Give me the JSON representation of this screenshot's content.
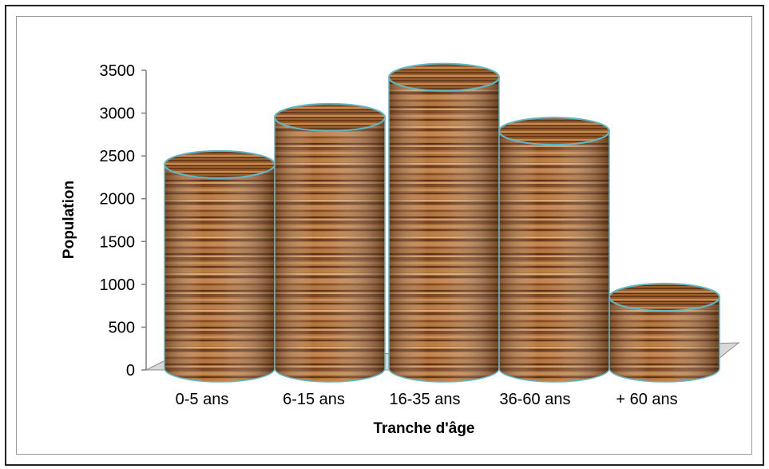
{
  "chart_data": {
    "type": "bar",
    "style": "3D cylinder, wood texture",
    "categories": [
      "0-5 ans",
      "6-15 ans",
      "16-35 ans",
      "36-60 ans",
      "+ 60 ans"
    ],
    "series": [
      {
        "values": [
          2400,
          2950,
          3420,
          2790,
          850
        ]
      }
    ],
    "xlabel": "Tranche d'âge",
    "ylabel": "Population",
    "ylim": [
      0,
      3500
    ],
    "yticks": [
      "0",
      "500",
      "1000",
      "1500",
      "2000",
      "2500",
      "3000",
      "3500"
    ],
    "grid": false,
    "legend": "none",
    "colors": {
      "wood_dark": "#6e3d1a",
      "wood_mid": "#a86a34",
      "wood_light": "#d7a870",
      "rim": "#5fb7c8",
      "floor": "#d9d9d9"
    }
  }
}
